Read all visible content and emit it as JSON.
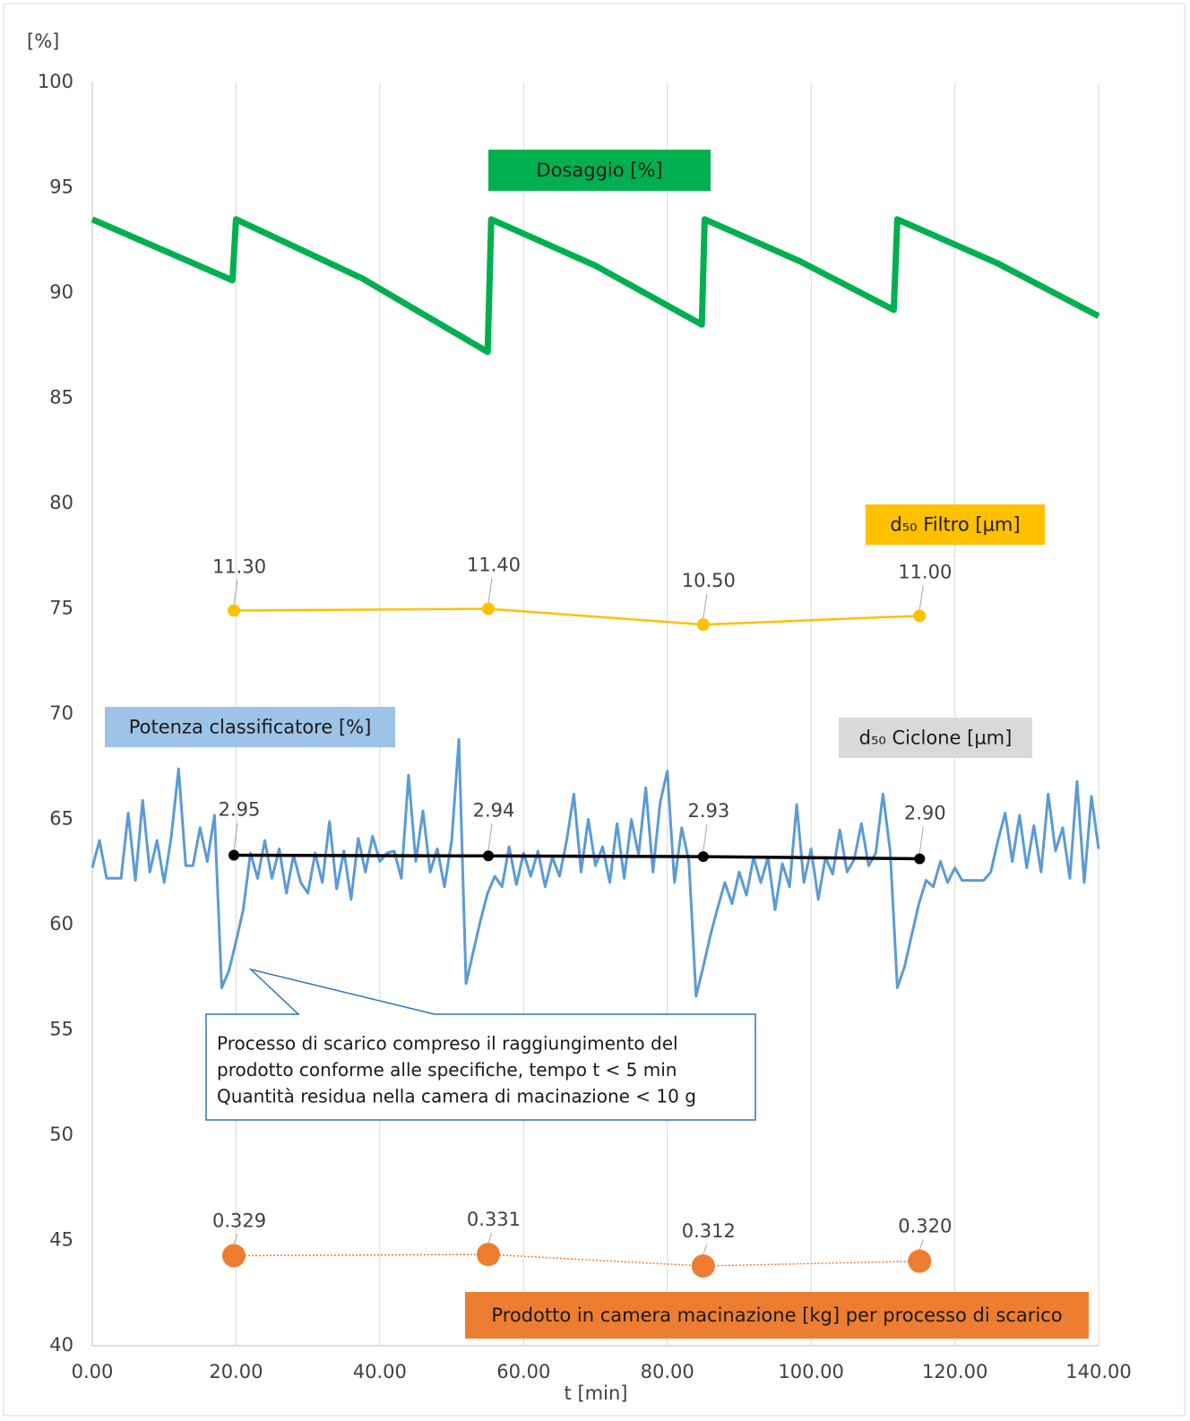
{
  "chart_data": {
    "type": "line",
    "y_label": "[%]",
    "x_label": "t [min]",
    "xlim": [
      0,
      140
    ],
    "xticks": [
      {
        "value": 0,
        "label": "0.00"
      },
      {
        "value": 20,
        "label": "20.00"
      },
      {
        "value": 40,
        "label": "40.00"
      },
      {
        "value": 60,
        "label": "60.00"
      },
      {
        "value": 80,
        "label": "80.00"
      },
      {
        "value": 100,
        "label": "100.00"
      },
      {
        "value": 120,
        "label": "120.00"
      },
      {
        "value": 140,
        "label": "140.00"
      }
    ],
    "ylim": [
      40,
      100
    ],
    "yticks": [
      40,
      45,
      50,
      55,
      60,
      65,
      70,
      75,
      80,
      85,
      90,
      95,
      100
    ],
    "grid": "x",
    "annotation": [
      "Processo di scarico compreso il raggiungimento del",
      "prodotto conforme alle specifiche, tempo t < 5 min",
      "Quantità residua nella camera di macinazione < 10 g"
    ],
    "series": [
      {
        "name": "Dosaggio [%]",
        "color": "#00b050",
        "x": [
          0,
          19.5,
          20,
          37.5,
          55,
          55.5,
          70,
          84.8,
          85.2,
          98.5,
          111.5,
          112,
          126,
          140
        ],
        "values": [
          93.5,
          90.6,
          93.5,
          90.7,
          87.2,
          93.5,
          91.3,
          88.5,
          93.5,
          91.5,
          89.2,
          93.5,
          91.4,
          88.9
        ]
      },
      {
        "name": "d₅₀ Filtro [µm]",
        "color": "#ffc000",
        "ylim": [
          -30.6,
          41.4
        ],
        "x": [
          19.7,
          55.1,
          85.0,
          115.1
        ],
        "values": [
          11.3,
          11.4,
          10.5,
          11.0
        ],
        "value_labels": [
          "11.30",
          "11.40",
          "10.50",
          "11.00"
        ]
      },
      {
        "name": "Potenza classificatore [%]",
        "color": "#5b9bd5",
        "x": [
          0,
          1,
          2,
          3,
          4,
          5,
          6,
          7,
          8,
          9,
          10,
          11,
          12,
          13,
          14,
          15,
          16,
          17,
          18,
          19,
          20,
          21,
          22,
          23,
          24,
          25,
          26,
          27,
          28,
          29,
          30,
          31,
          32,
          33,
          34,
          35,
          36,
          37,
          38,
          39,
          40,
          41,
          42,
          43,
          44,
          45,
          46,
          47,
          48,
          49,
          50,
          51,
          52,
          53,
          54,
          55,
          56,
          57,
          58,
          59,
          60,
          61,
          62,
          63,
          64,
          65,
          66,
          67,
          68,
          69,
          70,
          71,
          72,
          73,
          74,
          75,
          76,
          77,
          78,
          79,
          80,
          81,
          82,
          83,
          84,
          85,
          86,
          87,
          88,
          89,
          90,
          91,
          92,
          93,
          94,
          95,
          96,
          97,
          98,
          99,
          100,
          101,
          102,
          103,
          104,
          105,
          106,
          107,
          108,
          109,
          110,
          111,
          112,
          113,
          114,
          115,
          116,
          117,
          118,
          119,
          120,
          121,
          122,
          123,
          124,
          125,
          126,
          127,
          128,
          129,
          130,
          131,
          132,
          133,
          134,
          135,
          136,
          137,
          138,
          139,
          140
        ],
        "values": [
          62.7,
          64.0,
          62.2,
          62.2,
          62.2,
          65.3,
          62.1,
          65.9,
          62.5,
          64.0,
          62.0,
          64.2,
          67.4,
          62.8,
          62.8,
          64.6,
          63.0,
          65.2,
          57.0,
          57.8,
          59.2,
          60.7,
          63.4,
          62.2,
          64.0,
          62.2,
          63.6,
          61.5,
          63.3,
          62.0,
          61.5,
          63.4,
          62.0,
          64.9,
          61.7,
          63.5,
          61.2,
          64.1,
          62.5,
          64.2,
          63.0,
          63.4,
          63.5,
          62.2,
          67.1,
          63.0,
          65.4,
          62.5,
          63.6,
          61.8,
          64.0,
          68.8,
          57.2,
          58.7,
          60.2,
          61.5,
          62.3,
          61.8,
          63.7,
          61.9,
          63.4,
          62.3,
          63.5,
          61.8,
          63.2,
          62.3,
          64.0,
          66.2,
          62.5,
          65.0,
          62.8,
          63.7,
          62.0,
          64.8,
          62.2,
          65.0,
          63.3,
          66.5,
          62.5,
          65.8,
          67.3,
          62.0,
          64.6,
          63.0,
          56.6,
          58.0,
          59.5,
          60.8,
          62.0,
          61.0,
          62.5,
          61.4,
          63.2,
          62.0,
          63.2,
          60.7,
          62.9,
          61.8,
          65.7,
          62.0,
          63.6,
          61.2,
          63.2,
          62.4,
          64.5,
          62.5,
          63.1,
          64.8,
          62.8,
          63.4,
          66.2,
          63.5,
          57.0,
          58.0,
          59.5,
          61.0,
          62.1,
          61.8,
          63.0,
          62.0,
          62.7,
          62.1,
          62.1,
          62.1,
          62.1,
          62.5,
          64.0,
          65.3,
          63.0,
          65.2,
          62.7,
          64.7,
          62.5,
          66.2,
          63.5,
          64.6,
          62.2,
          66.8,
          62.0,
          66.1,
          63.6
        ]
      },
      {
        "name": "d₅₀ Ciclone [µm]",
        "color": "#000000",
        "ylim": [
          -3.9,
          13.74
        ],
        "x": [
          19.7,
          55.1,
          85.0,
          115.1
        ],
        "values": [
          2.95,
          2.94,
          2.93,
          2.9
        ],
        "value_labels": [
          "2.95",
          "2.94",
          "2.93",
          "2.90"
        ]
      },
      {
        "name": "Prodotto in camera macinazione [kg] per processo di scarico",
        "color": "#ed7d31",
        "ylim": [
          0.181,
          2.257
        ],
        "line_style": "dotted",
        "x": [
          19.7,
          55.1,
          85.0,
          115.1
        ],
        "values": [
          0.329,
          0.331,
          0.312,
          0.32
        ],
        "value_labels": [
          "0.329",
          "0.331",
          "0.312",
          "0.320"
        ]
      }
    ]
  }
}
